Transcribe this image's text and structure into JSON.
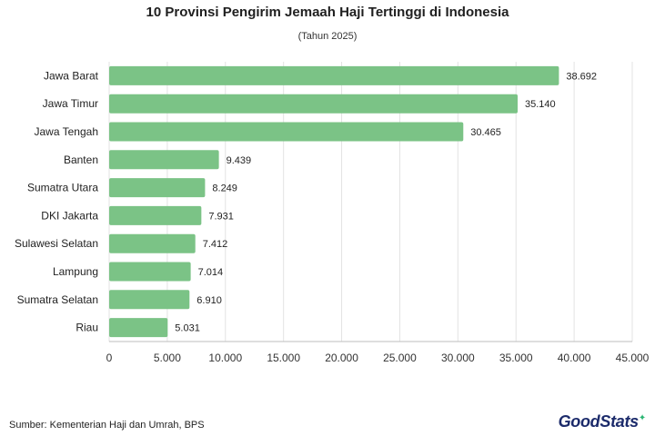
{
  "title": "10 Provinsi Pengirim Jemaah Haji Tertinggi di Indonesia",
  "subtitle": "(Tahun 2025)",
  "source": "Sumber: Kementerian Haji dan Umrah, BPS",
  "logo_text": "GoodStats",
  "bar_color": "#7bc386",
  "chart_data": {
    "type": "bar",
    "orientation": "horizontal",
    "categories": [
      "Jawa Barat",
      "Jawa Timur",
      "Jawa Tengah",
      "Banten",
      "Sumatra Utara",
      "DKI Jakarta",
      "Sulawesi Selatan",
      "Lampung",
      "Sumatra Selatan",
      "Riau"
    ],
    "values": [
      38692,
      35140,
      30465,
      9439,
      8249,
      7931,
      7412,
      7014,
      6910,
      5031
    ],
    "value_labels": [
      "38.692",
      "35.140",
      "30.465",
      "9.439",
      "8.249",
      "7.931",
      "7.412",
      "7.014",
      "6.910",
      "5.031"
    ],
    "xlim": [
      0,
      45000
    ],
    "xticks": [
      0,
      5000,
      10000,
      15000,
      20000,
      25000,
      30000,
      35000,
      40000,
      45000
    ],
    "xtick_labels": [
      "0",
      "5.000",
      "10.000",
      "15.000",
      "20.000",
      "25.000",
      "30.000",
      "35.000",
      "40.000",
      "45.000"
    ],
    "grid": true
  }
}
